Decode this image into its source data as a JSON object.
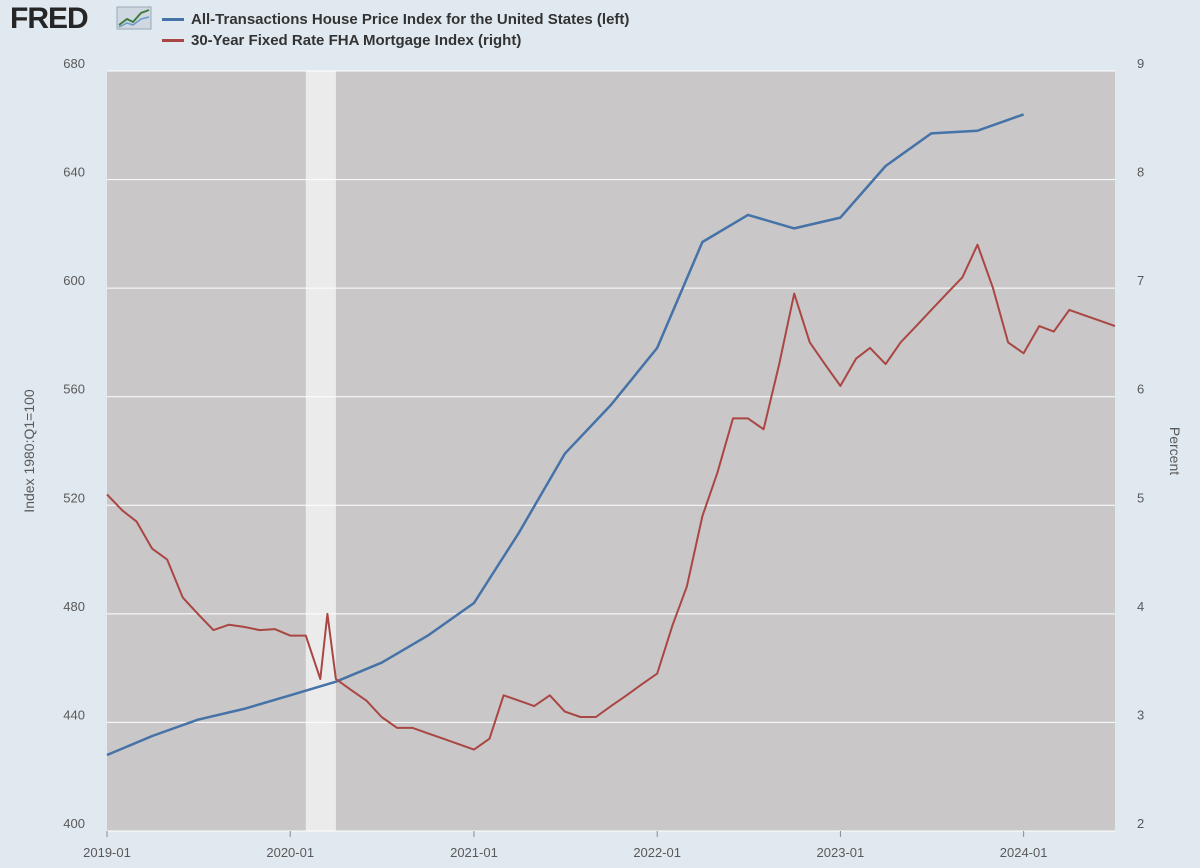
{
  "brand": {
    "logo_text": "FRED"
  },
  "colors": {
    "background": "#e1e9f0",
    "plot_bg": "#c9c7c8",
    "recession": "#ebebeb",
    "grid": "#ffffff"
  },
  "chart_data": {
    "type": "line",
    "legend_position": "top-left",
    "grid": true,
    "recession_shading": {
      "start": "2020-02",
      "end": "2020-04"
    },
    "x_axis": {
      "ticks": [
        "2019-01",
        "2020-01",
        "2021-01",
        "2022-01",
        "2023-01",
        "2024-01"
      ],
      "range": [
        "2019-01",
        "2024-07"
      ]
    },
    "y_left": {
      "label": "Index 1980:Q1=100",
      "range": [
        400,
        680
      ],
      "ticks": [
        "400",
        "440",
        "480",
        "520",
        "560",
        "600",
        "640",
        "680"
      ]
    },
    "y_right": {
      "label": "Percent",
      "range": [
        2,
        9
      ],
      "ticks": [
        "2",
        "3",
        "4",
        "5",
        "6",
        "7",
        "8",
        "9"
      ]
    },
    "series": [
      {
        "name": "All-Transactions House Price Index for the United States (left)",
        "axis": "left",
        "color": "#4572a7",
        "points": [
          [
            "2019-01-01",
            428
          ],
          [
            "2019-04-01",
            435
          ],
          [
            "2019-07-01",
            441
          ],
          [
            "2019-10-01",
            445
          ],
          [
            "2020-01-01",
            450
          ],
          [
            "2020-04-01",
            455
          ],
          [
            "2020-07-01",
            462
          ],
          [
            "2020-10-01",
            472
          ],
          [
            "2021-01-01",
            484
          ],
          [
            "2021-04-01",
            510
          ],
          [
            "2021-07-01",
            539
          ],
          [
            "2021-10-01",
            557
          ],
          [
            "2022-01-01",
            578
          ],
          [
            "2022-04-01",
            617
          ],
          [
            "2022-07-01",
            627
          ],
          [
            "2022-10-01",
            622
          ],
          [
            "2023-01-01",
            626
          ],
          [
            "2023-04-01",
            645
          ],
          [
            "2023-07-01",
            657
          ],
          [
            "2023-10-01",
            658
          ],
          [
            "2024-01-01",
            664
          ]
        ]
      },
      {
        "name": "30-Year Fixed Rate FHA Mortgage Index (right)",
        "axis": "right",
        "color": "#aa4643",
        "points": [
          [
            "2019-01-01",
            5.1
          ],
          [
            "2019-02-01",
            4.95
          ],
          [
            "2019-03-01",
            4.85
          ],
          [
            "2019-04-01",
            4.6
          ],
          [
            "2019-05-01",
            4.5
          ],
          [
            "2019-06-01",
            4.15
          ],
          [
            "2019-07-01",
            4.0
          ],
          [
            "2019-08-01",
            3.85
          ],
          [
            "2019-09-01",
            3.9
          ],
          [
            "2019-10-01",
            3.88
          ],
          [
            "2019-11-01",
            3.85
          ],
          [
            "2019-12-01",
            3.86
          ],
          [
            "2020-01-01",
            3.8
          ],
          [
            "2020-02-01",
            3.8
          ],
          [
            "2020-03-01",
            3.4
          ],
          [
            "2020-03-15",
            4.0
          ],
          [
            "2020-04-01",
            3.4
          ],
          [
            "2020-05-01",
            3.3
          ],
          [
            "2020-06-01",
            3.2
          ],
          [
            "2020-07-01",
            3.05
          ],
          [
            "2020-08-01",
            2.95
          ],
          [
            "2020-09-01",
            2.95
          ],
          [
            "2020-10-01",
            2.9
          ],
          [
            "2020-11-01",
            2.85
          ],
          [
            "2020-12-01",
            2.8
          ],
          [
            "2021-01-01",
            2.75
          ],
          [
            "2021-02-01",
            2.85
          ],
          [
            "2021-03-01",
            3.25
          ],
          [
            "2021-04-01",
            3.2
          ],
          [
            "2021-05-01",
            3.15
          ],
          [
            "2021-06-01",
            3.25
          ],
          [
            "2021-07-01",
            3.1
          ],
          [
            "2021-08-01",
            3.05
          ],
          [
            "2021-09-01",
            3.05
          ],
          [
            "2021-10-01",
            3.15
          ],
          [
            "2021-11-01",
            3.25
          ],
          [
            "2021-12-01",
            3.35
          ],
          [
            "2022-01-01",
            3.45
          ],
          [
            "2022-02-01",
            3.9
          ],
          [
            "2022-03-01",
            4.25
          ],
          [
            "2022-04-01",
            4.9
          ],
          [
            "2022-05-01",
            5.3
          ],
          [
            "2022-06-01",
            5.8
          ],
          [
            "2022-07-01",
            5.8
          ],
          [
            "2022-08-01",
            5.7
          ],
          [
            "2022-09-01",
            6.3
          ],
          [
            "2022-10-01",
            6.95
          ],
          [
            "2022-11-01",
            6.5
          ],
          [
            "2022-12-01",
            6.3
          ],
          [
            "2023-01-01",
            6.1
          ],
          [
            "2023-02-01",
            6.35
          ],
          [
            "2023-03-01",
            6.45
          ],
          [
            "2023-04-01",
            6.3
          ],
          [
            "2023-05-01",
            6.5
          ],
          [
            "2023-06-01",
            6.65
          ],
          [
            "2023-07-01",
            6.8
          ],
          [
            "2023-08-01",
            6.95
          ],
          [
            "2023-09-01",
            7.1
          ],
          [
            "2023-10-01",
            7.4
          ],
          [
            "2023-11-01",
            7.0
          ],
          [
            "2023-12-01",
            6.5
          ],
          [
            "2024-01-01",
            6.4
          ],
          [
            "2024-02-01",
            6.65
          ],
          [
            "2024-03-01",
            6.6
          ],
          [
            "2024-04-01",
            6.8
          ],
          [
            "2024-05-01",
            6.75
          ],
          [
            "2024-06-01",
            6.7
          ],
          [
            "2024-07-01",
            6.65
          ]
        ]
      }
    ]
  }
}
